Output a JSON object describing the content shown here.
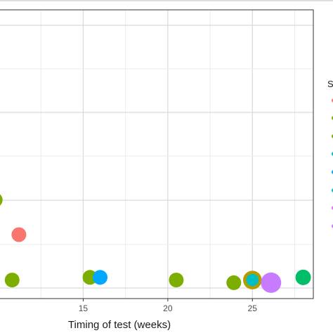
{
  "chart_data": {
    "type": "scatter",
    "xlabel": "Timing of test (weeks)",
    "ylabel": "",
    "xlim": [
      10,
      28.6
    ],
    "x_ticks": [
      15,
      20,
      25
    ],
    "x_tick_labels": [
      "15",
      "20",
      "25"
    ],
    "grid": true,
    "legend_position": "right",
    "legend_title_visible": "S",
    "points": [
      {
        "x": 9.8,
        "y": 0.33,
        "size": 1.0,
        "color": "#7CAE00"
      },
      {
        "x": 11.2,
        "y": 0.2,
        "size": 1.0,
        "color": "#F8766D"
      },
      {
        "x": 10.8,
        "y": 0.03,
        "size": 1.0,
        "color": "#7CAE00"
      },
      {
        "x": 15.4,
        "y": 0.04,
        "size": 1.0,
        "color": "#7CAE00"
      },
      {
        "x": 16.0,
        "y": 0.04,
        "size": 1.0,
        "color": "#00A9FF"
      },
      {
        "x": 20.5,
        "y": 0.03,
        "size": 1.0,
        "color": "#7CAE00"
      },
      {
        "x": 23.9,
        "y": 0.02,
        "size": 1.0,
        "color": "#7CAE00"
      },
      {
        "x": 25.0,
        "y": 0.03,
        "size": 1.6,
        "color": "#B59A00"
      },
      {
        "x": 25.0,
        "y": 0.03,
        "size": 0.7,
        "color": "#00BFC4"
      },
      {
        "x": 26.1,
        "y": 0.02,
        "size": 1.9,
        "color": "#C77CFF"
      },
      {
        "x": 28.0,
        "y": 0.04,
        "size": 1.1,
        "color": "#00BE67"
      }
    ],
    "legend_colors": [
      "#F8766D",
      "#7CAE00",
      "#7CAE00",
      "#00BFC4",
      "#00A9FF",
      "#00BFC4",
      "#E76BF3",
      "#C77CFF"
    ]
  },
  "colors": {
    "panel_border": "#333333",
    "grid_major": "#d9d9d9",
    "grid_minor": "#ebebeb"
  }
}
